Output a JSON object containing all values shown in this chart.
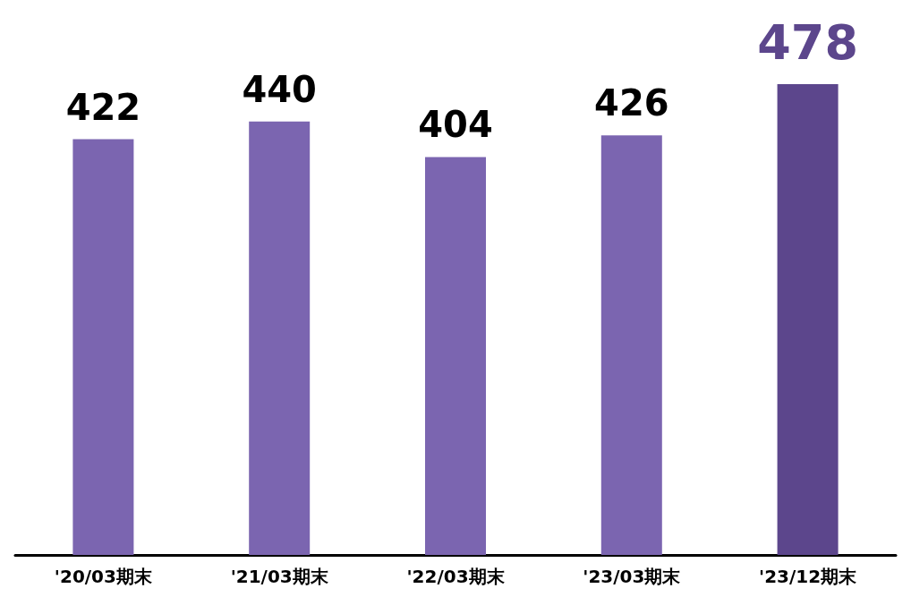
{
  "chart_data": {
    "type": "bar",
    "categories": [
      "'20/03期末",
      "'21/03期末",
      "'22/03期末",
      "'23/03期末",
      "'23/12期末"
    ],
    "values": [
      422,
      440,
      404,
      426,
      478
    ],
    "colors": [
      "#7b65b0",
      "#7b65b0",
      "#7b65b0",
      "#7b65b0",
      "#5c468c"
    ],
    "data_labels": true
  }
}
